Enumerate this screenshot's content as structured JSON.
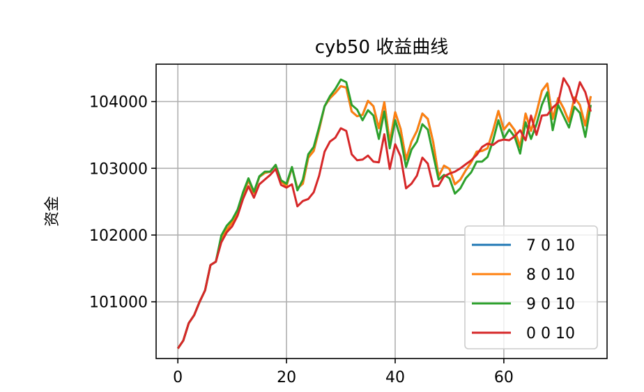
{
  "chart_data": {
    "type": "line",
    "title": "cyb50 收益曲线",
    "xlabel": "",
    "ylabel": "资金",
    "xlim": [
      -4,
      79
    ],
    "ylim": [
      100150,
      104560
    ],
    "x_ticks": [
      0,
      20,
      40,
      60
    ],
    "y_ticks": [
      101000,
      102000,
      103000,
      104000
    ],
    "y_tick_labels": [
      "101000",
      "102000",
      "103000",
      "104000"
    ],
    "x_tick_labels": [
      "0",
      "20",
      "40",
      "60"
    ],
    "grid": true,
    "legend_position": "lower-right",
    "series": [
      {
        "name": "7 0 10",
        "color": "#1f77b4",
        "values": [
          100300,
          100420,
          100680,
          100800,
          101000,
          101170,
          101550,
          101600,
          101950,
          102080,
          102190,
          102350,
          102610,
          102820,
          102630,
          102870,
          102930,
          102950,
          103050,
          102800,
          102740,
          103010,
          102700,
          102770,
          103160,
          103260,
          103580,
          103930,
          104050,
          104130,
          104230,
          104210,
          103850,
          103780,
          103800,
          104010,
          103930,
          103600,
          103990,
          103390,
          103840,
          103590,
          103130,
          103400,
          103560,
          103820,
          103740,
          103390,
          102880,
          103040,
          102990,
          102760,
          102830,
          102970,
          103090,
          103250,
          103260,
          103300,
          103560,
          103860,
          103580,
          103680,
          103570,
          103320,
          103820,
          103560,
          103830,
          104160,
          104270,
          103740,
          104050,
          103900,
          103700,
          104060,
          103950,
          103640,
          104080
        ]
      },
      {
        "name": "8 0 10",
        "color": "#ff7f0e",
        "values": [
          100300,
          100420,
          100680,
          100800,
          101000,
          101170,
          101550,
          101600,
          101950,
          102080,
          102190,
          102350,
          102610,
          102820,
          102630,
          102870,
          102930,
          102950,
          103050,
          102800,
          102740,
          103010,
          102700,
          102770,
          103160,
          103260,
          103580,
          103930,
          104050,
          104130,
          104230,
          104210,
          103850,
          103780,
          103800,
          104010,
          103930,
          103600,
          103990,
          103390,
          103840,
          103590,
          103130,
          103400,
          103560,
          103820,
          103740,
          103390,
          102880,
          103040,
          102990,
          102760,
          102830,
          102970,
          103090,
          103250,
          103260,
          103300,
          103560,
          103860,
          103580,
          103680,
          103570,
          103320,
          103820,
          103560,
          103830,
          104160,
          104270,
          103740,
          104050,
          103900,
          103700,
          104060,
          103950,
          103640,
          104080
        ]
      },
      {
        "name": "9 0 10",
        "color": "#2ca02c",
        "values": [
          100300,
          100420,
          100680,
          100800,
          101000,
          101170,
          101550,
          101600,
          101990,
          102140,
          102230,
          102380,
          102640,
          102850,
          102650,
          102880,
          102950,
          102950,
          103050,
          102820,
          102770,
          103020,
          102670,
          102830,
          103210,
          103320,
          103620,
          103930,
          104080,
          104190,
          104330,
          104290,
          103950,
          103880,
          103720,
          103870,
          103790,
          103440,
          103850,
          103300,
          103720,
          103450,
          103020,
          103280,
          103400,
          103660,
          103580,
          103200,
          102830,
          102900,
          102850,
          102620,
          102700,
          102850,
          102940,
          103100,
          103100,
          103170,
          103410,
          103720,
          103450,
          103580,
          103470,
          103220,
          103690,
          103440,
          103660,
          103950,
          104140,
          103570,
          103950,
          103780,
          103610,
          103920,
          103830,
          103470,
          103950
        ]
      },
      {
        "name": "0 0 10",
        "color": "#d62728",
        "values": [
          100300,
          100420,
          100680,
          100800,
          101000,
          101170,
          101550,
          101600,
          101890,
          102040,
          102130,
          102290,
          102540,
          102730,
          102560,
          102760,
          102830,
          102900,
          102990,
          102750,
          102710,
          102760,
          102430,
          102510,
          102540,
          102640,
          102890,
          103250,
          103400,
          103460,
          103600,
          103560,
          103210,
          103120,
          103130,
          103190,
          103100,
          103090,
          103510,
          102990,
          103360,
          103180,
          102700,
          102770,
          102890,
          103160,
          103070,
          102730,
          102740,
          102880,
          102920,
          102950,
          103000,
          103060,
          103120,
          103200,
          103320,
          103370,
          103350,
          103410,
          103430,
          103420,
          103480,
          103570,
          103420,
          103790,
          103500,
          103790,
          103800,
          103910,
          103980,
          104350,
          104220,
          103980,
          104290,
          104140,
          103850
        ]
      }
    ]
  }
}
